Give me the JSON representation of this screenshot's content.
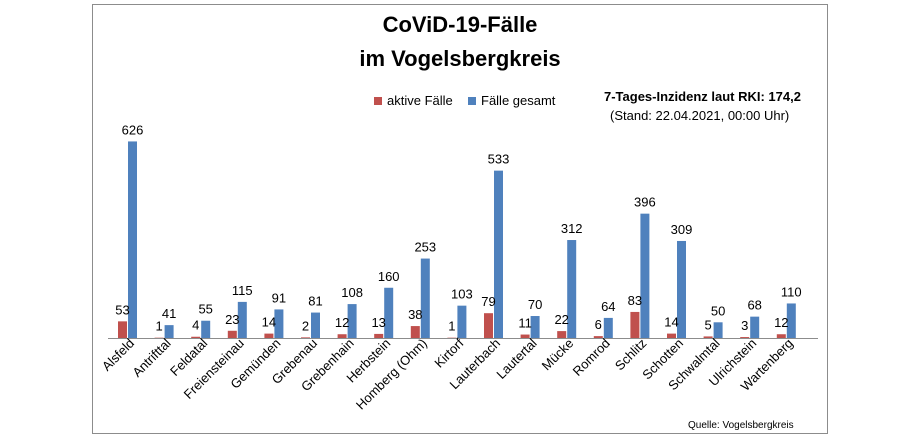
{
  "header": {
    "title_line1": "CoViD-19-Fälle",
    "title_line2": "im Vogelsbergkreis"
  },
  "info": {
    "incidence": "7-Tages-Inzidenz laut RKI: 174,2",
    "stand": "(Stand: 22.04.2021, 00:00 Uhr)"
  },
  "source": "Quelle: Vogelsbergkreis",
  "colors": {
    "aktive": "#c0504d",
    "gesamt": "#4f81bd"
  },
  "chart_data": {
    "type": "bar",
    "title": "CoViD-19-Fälle im Vogelsbergkreis",
    "categories": [
      "Alsfeld",
      "Antrifttal",
      "Feldatal",
      "Freiensteinau",
      "Gemünden",
      "Grebenau",
      "Grebenhain",
      "Herbstein",
      "Homberg (Ohm)",
      "Kirtorf",
      "Lauterbach",
      "Lautertal",
      "Mücke",
      "Romrod",
      "Schlitz",
      "Schotten",
      "Schwalmtal",
      "Ulrichstein",
      "Wartenberg"
    ],
    "series": [
      {
        "name": "aktive Fälle",
        "values": [
          53,
          1,
          4,
          23,
          14,
          2,
          12,
          13,
          38,
          1,
          79,
          11,
          22,
          6,
          83,
          14,
          5,
          3,
          12
        ]
      },
      {
        "name": "Fälle gesamt",
        "values": [
          626,
          41,
          55,
          115,
          91,
          81,
          108,
          160,
          253,
          103,
          533,
          70,
          312,
          64,
          396,
          309,
          50,
          68,
          110
        ]
      }
    ],
    "ylim": [
      0,
      700
    ],
    "legend": "top-center",
    "grid": false
  }
}
